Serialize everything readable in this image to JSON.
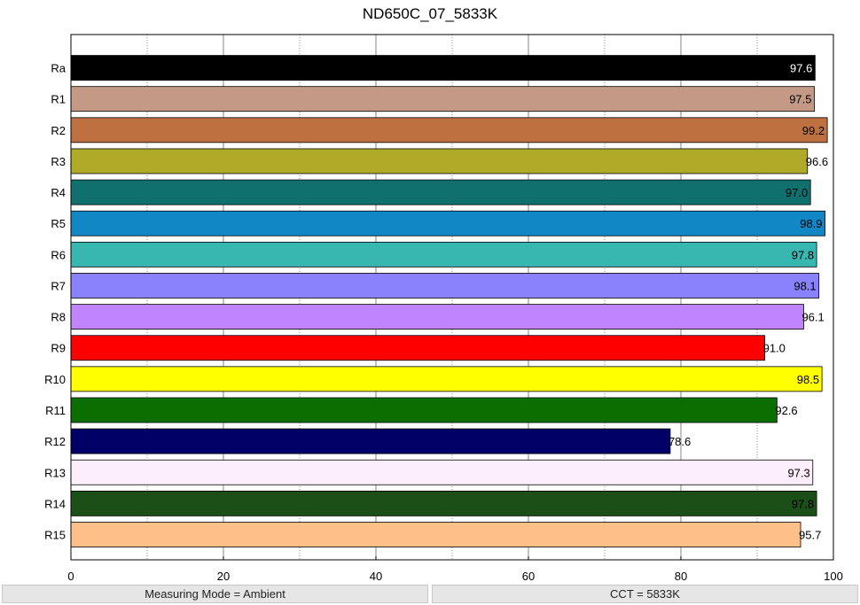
{
  "chart_data": {
    "type": "bar",
    "orientation": "horizontal",
    "title": "ND650C_07_5833K",
    "xlim": [
      0,
      100
    ],
    "xticks": [
      0,
      20,
      40,
      60,
      80,
      100
    ],
    "grid": true,
    "categories": [
      "Ra",
      "R1",
      "R2",
      "R3",
      "R4",
      "R5",
      "R6",
      "R7",
      "R8",
      "R9",
      "R10",
      "R11",
      "R12",
      "R13",
      "R14",
      "R15"
    ],
    "values": [
      97.6,
      97.5,
      99.2,
      96.6,
      97.0,
      98.9,
      97.8,
      98.1,
      96.1,
      91.0,
      98.5,
      92.6,
      78.6,
      97.3,
      97.8,
      95.7
    ],
    "value_labels": [
      "97.6",
      "97.5",
      "99.2",
      "96.6",
      "97.0",
      "98.9",
      "97.8",
      "98.1",
      "96.1",
      "91.0",
      "98.5",
      "92.6",
      "78.6",
      "97.3",
      "97.8",
      "95.7"
    ],
    "colors": [
      "#000000",
      "#c49a86",
      "#bf7040",
      "#afaa28",
      "#0f706e",
      "#1287c6",
      "#37b7b0",
      "#8a82fd",
      "#bf84fe",
      "#fe0000",
      "#ffff00",
      "#0b6e00",
      "#000066",
      "#fdeefb",
      "#1b4f17",
      "#ffbf88"
    ],
    "label_colors": [
      "#ffffff",
      "#000000",
      "#000000",
      "#000000",
      "#000000",
      "#000000",
      "#000000",
      "#000000",
      "#000000",
      "#000000",
      "#000000",
      "#000000",
      "#000000",
      "#000000",
      "#000000",
      "#000000"
    ]
  },
  "status": {
    "left": "Measuring Mode = Ambient",
    "right": "CCT = 5833K"
  }
}
